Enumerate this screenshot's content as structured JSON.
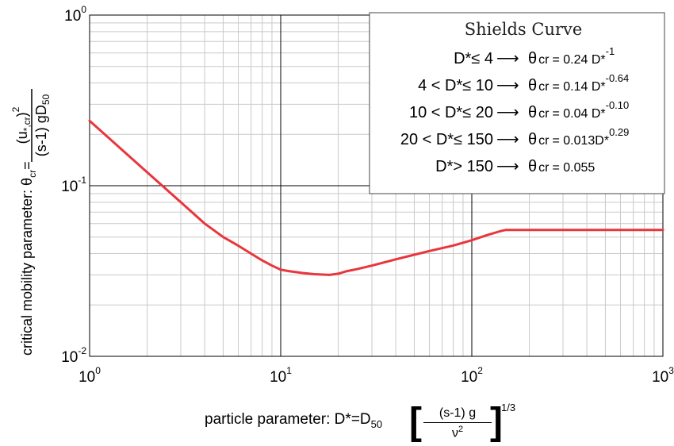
{
  "chart_data": {
    "type": "line",
    "x_scale": "log",
    "y_scale": "log",
    "xlim": [
      1,
      1000
    ],
    "ylim": [
      0.01,
      1
    ],
    "grid": true,
    "x_ticks": [
      {
        "base": "10",
        "exp": "0"
      },
      {
        "base": "10",
        "exp": "1"
      },
      {
        "base": "10",
        "exp": "2"
      },
      {
        "base": "10",
        "exp": "3"
      }
    ],
    "y_ticks": [
      {
        "base": "10",
        "exp": "0"
      },
      {
        "base": "10",
        "exp": "-1"
      },
      {
        "base": "10",
        "exp": "-2"
      }
    ],
    "ylabel": {
      "prefix": "critical mobility parameter: θ",
      "prefix_sub": "cr",
      "equals": "=",
      "num_main": "(u",
      "num_sub": "*,cr",
      "num_close": ")",
      "num_sup": "2",
      "den_main": "(s-1) gD",
      "den_sub": "50"
    },
    "xlabel": {
      "prefix": "particle parameter: D",
      "star": "*",
      "equals": "=D",
      "sub": "50",
      "frac_num": "(s-1) g",
      "frac_den": "ν",
      "frac_den_sup": "2",
      "power": "1/3"
    },
    "series": [
      {
        "color": "#e8363c",
        "x": [
          1,
          1.5,
          2,
          3,
          4,
          5,
          6,
          7,
          8,
          9,
          10,
          11,
          13,
          15,
          18,
          20,
          22,
          25,
          30,
          40,
          50,
          60,
          80,
          100,
          120,
          140,
          150,
          200,
          300,
          500,
          1000
        ],
        "y": [
          0.24,
          0.16,
          0.12,
          0.08,
          0.06,
          0.05,
          0.0445,
          0.04,
          0.0365,
          0.034,
          0.0322,
          0.0316,
          0.0308,
          0.0303,
          0.03,
          0.0305,
          0.0315,
          0.0324,
          0.034,
          0.037,
          0.0394,
          0.0414,
          0.0446,
          0.0479,
          0.0513,
          0.054,
          0.055,
          0.055,
          0.055,
          0.055,
          0.055
        ]
      }
    ],
    "legend": {
      "title": "Shields Curve",
      "placement": "top-right",
      "lines": [
        {
          "cond": "D*≤ 4",
          "arrow": "⟶",
          "theta": "θ",
          "sub": "cr",
          "rhs": "= 0.24 D*",
          "exp": "-1"
        },
        {
          "cond": "4 < D*≤ 10",
          "arrow": "⟶",
          "theta": "θ",
          "sub": "cr",
          "rhs": "= 0.14 D*",
          "exp": "-0.64"
        },
        {
          "cond": "10 < D*≤ 20",
          "arrow": "⟶",
          "theta": "θ",
          "sub": "cr",
          "rhs": "= 0.04 D*",
          "exp": "-0.10"
        },
        {
          "cond": "20 < D*≤ 150",
          "arrow": "⟶",
          "theta": "θ",
          "sub": "cr",
          "rhs": "= 0.013D*",
          "exp": "0.29"
        },
        {
          "cond": "D*> 150",
          "arrow": "⟶",
          "theta": "θ",
          "sub": "cr",
          "rhs": "= 0.055",
          "exp": ""
        }
      ]
    }
  }
}
